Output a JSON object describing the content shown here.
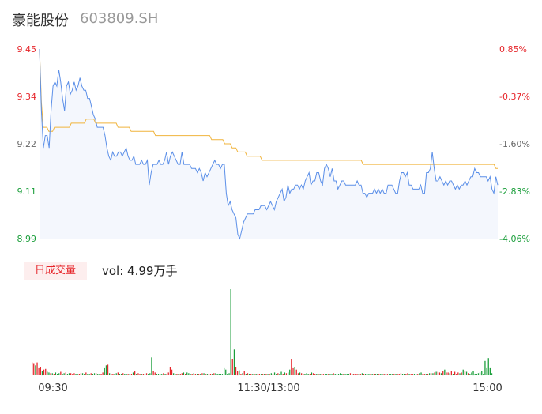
{
  "header": {
    "name": "豪能股份",
    "code": "603809.SH"
  },
  "volume_panel": {
    "badge": "日成交量",
    "vol_text": "vol: 4.99万手"
  },
  "colors": {
    "up": "#e6262b",
    "down": "#1a9e3a",
    "price_line": "#5b8fe8",
    "avg_line": "#f0b43c",
    "area_fill": "#f4f7fd"
  },
  "chart_data": [
    {
      "type": "line",
      "title": "",
      "x_ticks": [
        "09:30",
        "11:30/13:00",
        "15:00"
      ],
      "y_left_ticks": [
        "9.45",
        "9.34",
        "9.22",
        "9.11",
        "8.99"
      ],
      "y_right_ticks": [
        "0.85%",
        "-0.37%",
        "-1.60%",
        "-2.83%",
        "-4.06%"
      ],
      "ylim": [
        8.99,
        9.45
      ],
      "series": [
        {
          "role": "price",
          "values": [
            9.45,
            9.3,
            9.21,
            9.24,
            9.24,
            9.21,
            9.3,
            9.36,
            9.37,
            9.36,
            9.4,
            9.37,
            9.33,
            9.3,
            9.36,
            9.37,
            9.34,
            9.35,
            9.37,
            9.35,
            9.36,
            9.38,
            9.36,
            9.35,
            9.35,
            9.33,
            9.33,
            9.31,
            9.29,
            9.28,
            9.26,
            9.26,
            9.26,
            9.26,
            9.24,
            9.21,
            9.19,
            9.18,
            9.2,
            9.19,
            9.19,
            9.2,
            9.2,
            9.19,
            9.2,
            9.21,
            9.19,
            9.18,
            9.18,
            9.19,
            9.17,
            9.17,
            9.17,
            9.18,
            9.17,
            9.17,
            9.18,
            9.12,
            9.15,
            9.17,
            9.17,
            9.17,
            9.18,
            9.17,
            9.17,
            9.18,
            9.2,
            9.17,
            9.19,
            9.2,
            9.19,
            9.18,
            9.17,
            9.17,
            9.2,
            9.17,
            9.17,
            9.17,
            9.17,
            9.16,
            9.16,
            9.16,
            9.15,
            9.16,
            9.15,
            9.13,
            9.15,
            9.14,
            9.15,
            9.16,
            9.17,
            9.18,
            9.17,
            9.17,
            9.16,
            9.17,
            9.17,
            9.1,
            9.07,
            9.08,
            9.06,
            9.05,
            9.04,
            9.0,
            8.99,
            9.01,
            9.03,
            9.04,
            9.05,
            9.05,
            9.05,
            9.05,
            9.06,
            9.06,
            9.06,
            9.07,
            9.07,
            9.07,
            9.06,
            9.07,
            9.08,
            9.07,
            9.06,
            9.08,
            9.09,
            9.1,
            9.11,
            9.08,
            9.09,
            9.12,
            9.1,
            9.11,
            9.11,
            9.12,
            9.12,
            9.11,
            9.12,
            9.11,
            9.13,
            9.14,
            9.15,
            9.12,
            9.13,
            9.13,
            9.15,
            9.15,
            9.13,
            9.12,
            9.16,
            9.17,
            9.16,
            9.14,
            9.16,
            9.13,
            9.13,
            9.11,
            9.12,
            9.13,
            9.13,
            9.12,
            9.12,
            9.12,
            9.12,
            9.12,
            9.12,
            9.13,
            9.12,
            9.12,
            9.1,
            9.1,
            9.09,
            9.1,
            9.1,
            9.1,
            9.11,
            9.1,
            9.11,
            9.1,
            9.11,
            9.1,
            9.1,
            9.12,
            9.12,
            9.12,
            9.11,
            9.1,
            9.1,
            9.13,
            9.15,
            9.15,
            9.14,
            9.15,
            9.12,
            9.12,
            9.11,
            9.11,
            9.11,
            9.11,
            9.12,
            9.1,
            9.1,
            9.15,
            9.15,
            9.16,
            9.2,
            9.16,
            9.13,
            9.13,
            9.14,
            9.13,
            9.12,
            9.13,
            9.12,
            9.13,
            9.13,
            9.12,
            9.11,
            9.12,
            9.11,
            9.12,
            9.12,
            9.13,
            9.12,
            9.13,
            9.14,
            9.14,
            9.16,
            9.15,
            9.15,
            9.14,
            9.14,
            9.14,
            9.14,
            9.13,
            9.14,
            9.11,
            9.1,
            9.14,
            9.12
          ]
        },
        {
          "role": "average",
          "values": [
            9.45,
            9.32,
            9.26,
            9.26,
            9.26,
            9.25,
            9.25,
            9.25,
            9.26,
            9.26,
            9.26,
            9.26,
            9.26,
            9.26,
            9.26,
            9.26,
            9.26,
            9.27,
            9.27,
            9.27,
            9.27,
            9.27,
            9.27,
            9.27,
            9.27,
            9.28,
            9.28,
            9.28,
            9.28,
            9.28,
            9.27,
            9.27,
            9.27,
            9.27,
            9.27,
            9.27,
            9.27,
            9.27,
            9.27,
            9.27,
            9.27,
            9.27,
            9.26,
            9.26,
            9.26,
            9.26,
            9.26,
            9.26,
            9.26,
            9.25,
            9.25,
            9.25,
            9.25,
            9.25,
            9.25,
            9.25,
            9.25,
            9.25,
            9.25,
            9.25,
            9.25,
            9.25,
            9.24,
            9.24,
            9.24,
            9.24,
            9.24,
            9.24,
            9.24,
            9.24,
            9.24,
            9.24,
            9.24,
            9.24,
            9.24,
            9.24,
            9.24,
            9.24,
            9.24,
            9.24,
            9.24,
            9.24,
            9.24,
            9.24,
            9.24,
            9.24,
            9.24,
            9.24,
            9.24,
            9.24,
            9.24,
            9.24,
            9.23,
            9.23,
            9.23,
            9.23,
            9.23,
            9.23,
            9.23,
            9.22,
            9.22,
            9.22,
            9.22,
            9.21,
            9.21,
            9.21,
            9.2,
            9.2,
            9.2,
            9.2,
            9.2,
            9.19,
            9.19,
            9.19,
            9.19,
            9.19,
            9.19,
            9.19,
            9.19,
            9.18,
            9.18,
            9.18,
            9.18,
            9.18,
            9.18,
            9.18,
            9.18,
            9.18,
            9.18,
            9.18,
            9.18,
            9.18,
            9.18,
            9.18,
            9.18,
            9.18,
            9.18,
            9.18,
            9.18,
            9.18,
            9.18,
            9.18,
            9.18,
            9.18,
            9.18,
            9.18,
            9.18,
            9.18,
            9.18,
            9.18,
            9.18,
            9.18,
            9.18,
            9.18,
            9.18,
            9.18,
            9.18,
            9.18,
            9.18,
            9.18,
            9.18,
            9.18,
            9.18,
            9.18,
            9.18,
            9.18,
            9.18,
            9.18,
            9.18,
            9.18,
            9.18,
            9.18,
            9.18,
            9.17,
            9.17,
            9.17,
            9.17,
            9.17,
            9.17,
            9.17,
            9.17,
            9.17,
            9.17,
            9.17,
            9.17,
            9.17,
            9.17,
            9.17,
            9.17,
            9.17,
            9.17,
            9.17,
            9.17,
            9.17,
            9.17,
            9.17,
            9.17,
            9.17,
            9.17,
            9.17,
            9.17,
            9.17,
            9.17,
            9.17,
            9.17,
            9.17,
            9.17,
            9.17,
            9.17,
            9.17,
            9.17,
            9.17,
            9.17,
            9.17,
            9.17,
            9.17,
            9.17,
            9.17,
            9.17,
            9.17,
            9.17,
            9.17,
            9.17,
            9.17,
            9.17,
            9.17,
            9.17,
            9.17,
            9.17,
            9.17,
            9.17,
            9.17,
            9.17,
            9.17,
            9.17,
            9.17,
            9.17,
            9.17,
            9.17,
            9.17,
            9.17,
            9.17,
            9.17,
            9.17,
            9.16,
            9.16
          ]
        }
      ]
    },
    {
      "type": "bar",
      "title": "",
      "note_units": "relative volume",
      "values": [
        18,
        16,
        14,
        18,
        10,
        12,
        6,
        8,
        9,
        5,
        4,
        3,
        3,
        2,
        4,
        2,
        3,
        5,
        2,
        3,
        4,
        2,
        3,
        3,
        2,
        3,
        2,
        1,
        2,
        3,
        3,
        2,
        4,
        2,
        1,
        3,
        2,
        3,
        3,
        2,
        1,
        2,
        4,
        10,
        14,
        15,
        3,
        2,
        2,
        1,
        3,
        4,
        2,
        2,
        3,
        2,
        2,
        1,
        2,
        2,
        4,
        6,
        2,
        3,
        2,
        2,
        2,
        1,
        3,
        2,
        3,
        25,
        6,
        4,
        2,
        2,
        2,
        1,
        3,
        2,
        2,
        4,
        12,
        8,
        3,
        2,
        2,
        2,
        2,
        3,
        4,
        2,
        4,
        3,
        2,
        2,
        3,
        2,
        2,
        1,
        1,
        3,
        3,
        2,
        2,
        2,
        2,
        2,
        3,
        3,
        2,
        2,
        2,
        1,
        10,
        8,
        2,
        3,
        120,
        22,
        36,
        12,
        6,
        7,
        2,
        3,
        6,
        2,
        3,
        2,
        2,
        1,
        2,
        2,
        2,
        2,
        1,
        1,
        2,
        2,
        1,
        1,
        3,
        2,
        4,
        2,
        3,
        2,
        5,
        2,
        4,
        3,
        4,
        8,
        22,
        10,
        12,
        8,
        3,
        4,
        3,
        2,
        2,
        3,
        2,
        2,
        4,
        3,
        2,
        2,
        2,
        2,
        2,
        1,
        1,
        1,
        1,
        1,
        1,
        3,
        2,
        2,
        2,
        3,
        2,
        2,
        1,
        2,
        2,
        3,
        2,
        2,
        2,
        1,
        1,
        2,
        3,
        2,
        2,
        2,
        1,
        1,
        2,
        2,
        1,
        2,
        1,
        2,
        1,
        2,
        1,
        1,
        1,
        1,
        1,
        2,
        2,
        1,
        2,
        3,
        2,
        2,
        2,
        3,
        2,
        1,
        1,
        2,
        2,
        1,
        3,
        4,
        2,
        2,
        1,
        2,
        3,
        3,
        3,
        4,
        5,
        5,
        4,
        3,
        6,
        8,
        4,
        4,
        3,
        6,
        2,
        5,
        2,
        4,
        3,
        4,
        8,
        6,
        5,
        3,
        2,
        4,
        6,
        2,
        2,
        3,
        4,
        6,
        2,
        20,
        10,
        24,
        10,
        3
      ],
      "up_flags": [
        1,
        1,
        0,
        1,
        1,
        1,
        0,
        1,
        1,
        0,
        0,
        1,
        0,
        1,
        0,
        0,
        0,
        1,
        0,
        0,
        1,
        0,
        0,
        1,
        1,
        1,
        0,
        0,
        1,
        1,
        0,
        0,
        1,
        0,
        0,
        1,
        0,
        0,
        1,
        0,
        0,
        1,
        1,
        0,
        0,
        1,
        0,
        1,
        1,
        0,
        0,
        1,
        0,
        0,
        1,
        0,
        0,
        1,
        0,
        1,
        0,
        1,
        0,
        1,
        1,
        0,
        1,
        0,
        1,
        0,
        0,
        0,
        1,
        1,
        0,
        0,
        0,
        0,
        1,
        0,
        1,
        1,
        1,
        1,
        0,
        0,
        1,
        0,
        1,
        1,
        0,
        1,
        0,
        0,
        0,
        1,
        0,
        1,
        0,
        1,
        0,
        1,
        0,
        1,
        0,
        1,
        1,
        0,
        1,
        0,
        0,
        0,
        0,
        0,
        0,
        0,
        0,
        0,
        0,
        1,
        0,
        1,
        1,
        0,
        1,
        0,
        1,
        0,
        1,
        0,
        1,
        0,
        1,
        0,
        1,
        1,
        0,
        1,
        0,
        1,
        0,
        1,
        0,
        1,
        0,
        0,
        1,
        0,
        0,
        1,
        0,
        1,
        0,
        0,
        1,
        1,
        0,
        1,
        1,
        0,
        1,
        1,
        0,
        0,
        0,
        1,
        0,
        1,
        1,
        0,
        1,
        0,
        1,
        1,
        0,
        0,
        1,
        0,
        0,
        1,
        0,
        0,
        0,
        0,
        0,
        1,
        0,
        0,
        0,
        1,
        0,
        1,
        1,
        1,
        0,
        1,
        0,
        1,
        0,
        0,
        0,
        1,
        0,
        1,
        0,
        0,
        1,
        0,
        0,
        1,
        0,
        1,
        0,
        0,
        0,
        1,
        0,
        1,
        1,
        1,
        0,
        0,
        1,
        1,
        0,
        1,
        1,
        0,
        0,
        1,
        0,
        0,
        1,
        1,
        0,
        1,
        0,
        1,
        0,
        1,
        0,
        1,
        1,
        0,
        1,
        0,
        1,
        1,
        0,
        1,
        0,
        1,
        1,
        1,
        0,
        1,
        0,
        1,
        0,
        1
      ]
    }
  ]
}
